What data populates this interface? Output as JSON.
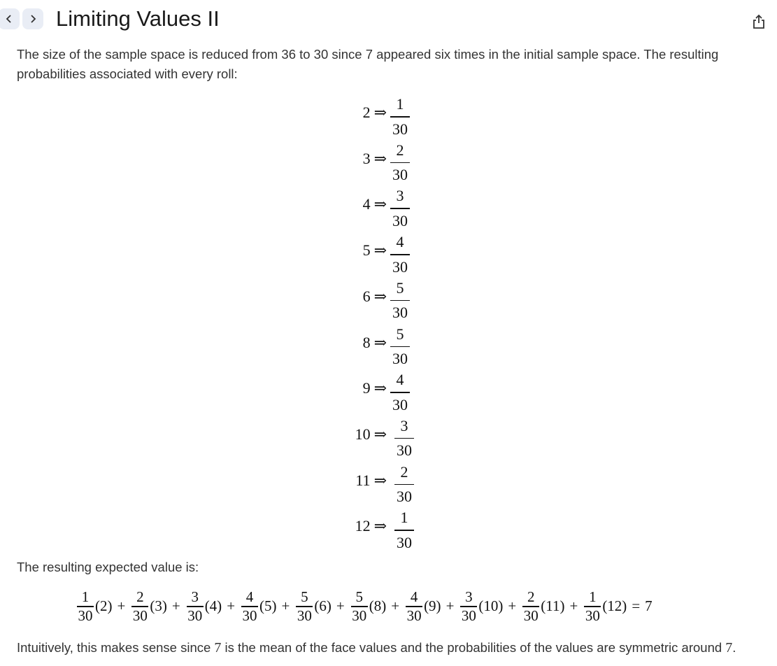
{
  "nav": {
    "back_label": "‹",
    "forward_label": "›"
  },
  "title": "Limiting Values II",
  "intro": "The size of the sample space is reduced from 36 to 30 since 7 appeared six times in the initial sample space. The resulting probabilities associated with every roll:",
  "arrow_symbol": "⇒",
  "probabilities": [
    {
      "roll": "2",
      "numerator": "1",
      "denominator": "30"
    },
    {
      "roll": "3",
      "numerator": "2",
      "denominator": "30"
    },
    {
      "roll": "4",
      "numerator": "3",
      "denominator": "30"
    },
    {
      "roll": "5",
      "numerator": "4",
      "denominator": "30"
    },
    {
      "roll": "6",
      "numerator": "5",
      "denominator": "30"
    },
    {
      "roll": "8",
      "numerator": "5",
      "denominator": "30"
    },
    {
      "roll": "9",
      "numerator": "4",
      "denominator": "30"
    },
    {
      "roll": "10",
      "numerator": "3",
      "denominator": "30"
    },
    {
      "roll": "11",
      "numerator": "2",
      "denominator": "30"
    },
    {
      "roll": "12",
      "numerator": "1",
      "denominator": "30"
    }
  ],
  "expected_label": "The resulting expected value is:",
  "expected_terms": [
    {
      "numerator": "1",
      "denominator": "30",
      "value": "(2)"
    },
    {
      "numerator": "2",
      "denominator": "30",
      "value": "(3)"
    },
    {
      "numerator": "3",
      "denominator": "30",
      "value": "(4)"
    },
    {
      "numerator": "4",
      "denominator": "30",
      "value": "(5)"
    },
    {
      "numerator": "5",
      "denominator": "30",
      "value": "(6)"
    },
    {
      "numerator": "5",
      "denominator": "30",
      "value": "(8)"
    },
    {
      "numerator": "4",
      "denominator": "30",
      "value": "(9)"
    },
    {
      "numerator": "3",
      "denominator": "30",
      "value": "(10)"
    },
    {
      "numerator": "2",
      "denominator": "30",
      "value": "(11)"
    },
    {
      "numerator": "1",
      "denominator": "30",
      "value": "(12)"
    }
  ],
  "plus_symbol": "+",
  "equals_symbol": "=",
  "expected_result": "7",
  "conclusion": {
    "part1": "Intuitively, this makes sense since ",
    "seven_a": "7",
    "part2": " is the mean of the face values and the probabilities of the values are symmetric around ",
    "seven_b": "7",
    "part3": "."
  },
  "icons": {
    "back": "chevron-left-icon",
    "forward": "chevron-right-icon",
    "share": "share-icon"
  }
}
